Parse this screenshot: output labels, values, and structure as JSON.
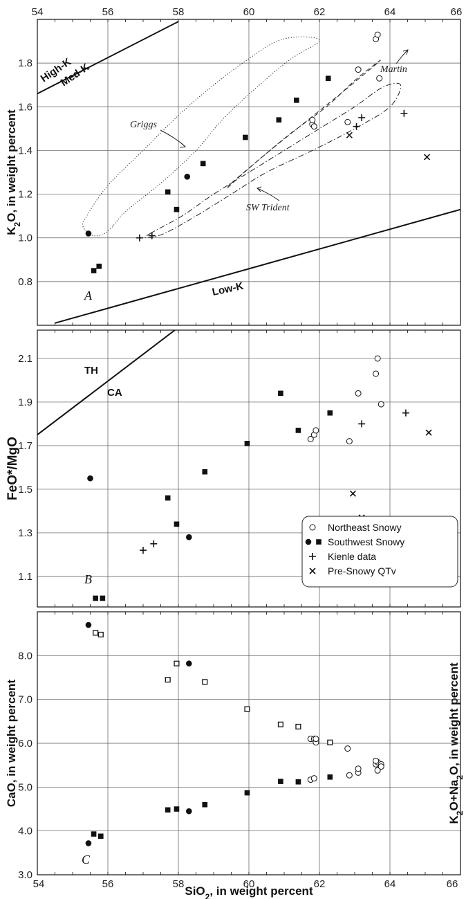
{
  "chart_data": [
    {
      "panel": "A",
      "type": "scatter",
      "ylabel": "K2O, in weight percent",
      "xlim": [
        54,
        66
      ],
      "ylim": [
        0.6,
        2.0
      ],
      "xticks": [
        54,
        56,
        58,
        60,
        62,
        64,
        66
      ],
      "yticks": [
        0.8,
        1.0,
        1.2,
        1.4,
        1.6,
        1.8
      ],
      "ytick_labels": [
        "0.8",
        "1.0",
        "1.2",
        "1.4",
        "1.6",
        "1.8"
      ],
      "boundaries": [
        {
          "name": "High-K / Med-K",
          "x": [
            54,
            58
          ],
          "y": [
            1.66,
            1.99
          ]
        },
        {
          "name": "Low-K",
          "x": [
            54.5,
            66
          ],
          "y": [
            0.61,
            1.13
          ]
        }
      ],
      "boundary_labels": [
        "High-K",
        "Med-K",
        "Low-K"
      ],
      "fields": [
        {
          "name": "Griggs",
          "style": "dotted",
          "points": [
            [
              55.3,
              1.05
            ],
            [
              55.4,
              1.1
            ],
            [
              56.0,
              1.24
            ],
            [
              57.0,
              1.4
            ],
            [
              58.0,
              1.56
            ],
            [
              59.0,
              1.7
            ],
            [
              60.0,
              1.82
            ],
            [
              60.8,
              1.9
            ],
            [
              61.5,
              1.92
            ],
            [
              62.0,
              1.9
            ],
            [
              61.2,
              1.82
            ],
            [
              60.3,
              1.7
            ],
            [
              59.3,
              1.55
            ],
            [
              58.5,
              1.4
            ],
            [
              57.5,
              1.25
            ],
            [
              56.5,
              1.12
            ],
            [
              56.0,
              1.03
            ],
            [
              55.6,
              1.01
            ]
          ]
        },
        {
          "name": "Martin",
          "style": "dashed",
          "points": [
            [
              59.5,
              1.25
            ],
            [
              60.3,
              1.36
            ],
            [
              61.2,
              1.48
            ],
            [
              62.2,
              1.6
            ],
            [
              63.0,
              1.72
            ],
            [
              63.7,
              1.81
            ],
            [
              63.5,
              1.78
            ],
            [
              62.6,
              1.66
            ],
            [
              61.6,
              1.53
            ],
            [
              60.6,
              1.4
            ],
            [
              59.8,
              1.29
            ],
            [
              59.4,
              1.23
            ]
          ]
        },
        {
          "name": "SW Trident",
          "style": "dash-dot",
          "points": [
            [
              57.2,
              1.02
            ],
            [
              58.1,
              1.1
            ],
            [
              59.0,
              1.2
            ],
            [
              60.0,
              1.3
            ],
            [
              61.0,
              1.4
            ],
            [
              62.0,
              1.5
            ],
            [
              63.0,
              1.6
            ],
            [
              63.8,
              1.69
            ],
            [
              64.3,
              1.7
            ],
            [
              64.0,
              1.6
            ],
            [
              63.0,
              1.5
            ],
            [
              61.8,
              1.4
            ],
            [
              60.5,
              1.3
            ],
            [
              59.5,
              1.2
            ],
            [
              58.5,
              1.1
            ],
            [
              57.6,
              1.02
            ],
            [
              57.1,
              1.0
            ]
          ]
        }
      ],
      "field_labels": [
        "Griggs",
        "Martin",
        "SW Trident"
      ],
      "series": [
        {
          "name": "Northeast Snowy",
          "marker": "open-circle",
          "x": [
            61.8,
            61.8,
            61.85,
            62.8,
            63.1,
            63.6,
            63.65,
            63.7
          ],
          "y": [
            1.52,
            1.54,
            1.51,
            1.53,
            1.77,
            1.91,
            1.93,
            1.73
          ]
        },
        {
          "name": "Southwest Snowy",
          "marker": "filled-square",
          "x": [
            55.6,
            55.75,
            57.7,
            57.95,
            58.7,
            59.9,
            60.85,
            61.35,
            62.25
          ],
          "y": [
            0.85,
            0.87,
            1.21,
            1.13,
            1.34,
            1.46,
            1.54,
            1.63,
            1.73
          ]
        },
        {
          "name": "Southwest Snowy",
          "marker": "filled-circle",
          "x": [
            55.45,
            58.25
          ],
          "y": [
            1.02,
            1.28
          ]
        },
        {
          "name": "Kienle data",
          "marker": "plus",
          "x": [
            56.9,
            57.25,
            63.05,
            63.2,
            64.4
          ],
          "y": [
            1.0,
            1.01,
            1.51,
            1.55,
            1.57
          ]
        },
        {
          "name": "Pre-Snowy QTv",
          "marker": "x",
          "x": [
            62.85,
            65.05
          ],
          "y": [
            1.47,
            1.37
          ]
        }
      ]
    },
    {
      "panel": "B",
      "type": "scatter",
      "ylabel": "FeO*/MgO",
      "xlim": [
        54,
        66
      ],
      "ylim": [
        0.96,
        2.23
      ],
      "yticks": [
        1.1,
        1.3,
        1.5,
        1.7,
        1.9,
        2.1
      ],
      "ytick_labels": [
        "1.1",
        "1.3",
        "1.5",
        "1.7",
        "1.9",
        "2.1"
      ],
      "boundaries": [
        {
          "name": "TH / CA",
          "x": [
            54,
            57.9
          ],
          "y": [
            1.75,
            2.23
          ]
        }
      ],
      "boundary_labels": [
        "TH",
        "CA"
      ],
      "series": [
        {
          "name": "Northeast Snowy",
          "marker": "open-circle",
          "x": [
            61.75,
            61.85,
            61.9,
            62.85,
            63.1,
            63.6,
            63.65,
            63.75
          ],
          "y": [
            1.73,
            1.75,
            1.77,
            1.72,
            1.94,
            2.03,
            2.1,
            1.89
          ]
        },
        {
          "name": "Southwest Snowy",
          "marker": "filled-square",
          "x": [
            55.65,
            55.85,
            57.7,
            57.95,
            58.75,
            59.95,
            60.9,
            61.4,
            62.3
          ],
          "y": [
            1.0,
            1.0,
            1.46,
            1.34,
            1.58,
            1.71,
            1.94,
            1.77,
            1.85
          ]
        },
        {
          "name": "Southwest Snowy",
          "marker": "filled-circle",
          "x": [
            55.5,
            58.3
          ],
          "y": [
            1.55,
            1.28
          ]
        },
        {
          "name": "Kienle data",
          "marker": "plus",
          "x": [
            57.0,
            57.3,
            63.2,
            64.45
          ],
          "y": [
            1.22,
            1.25,
            1.8,
            1.85
          ]
        },
        {
          "name": "Pre-Snowy QTv",
          "marker": "x",
          "x": [
            62.95,
            63.2,
            65.1
          ],
          "y": [
            1.48,
            1.37,
            1.76
          ]
        }
      ],
      "legend": {
        "placement": "lower-right",
        "entries": [
          {
            "label": "Northeast Snowy",
            "markers": [
              "open-circle"
            ]
          },
          {
            "label": "Southwest Snowy",
            "markers": [
              "filled-circle",
              "filled-square"
            ]
          },
          {
            "label": "Kienle data",
            "markers": [
              "plus"
            ]
          },
          {
            "label": "Pre-Snowy QTv",
            "markers": [
              "x"
            ]
          }
        ]
      }
    },
    {
      "panel": "C",
      "type": "scatter",
      "ylabel": "CaO, in weight percent",
      "ylabel2": "K2O+Na2O, in weight percent",
      "xlabel": "SiO2, in weight percent",
      "xlim": [
        54,
        66
      ],
      "ylim": [
        3.0,
        9.0
      ],
      "yticks": [
        3.0,
        4.0,
        5.0,
        6.0,
        7.0,
        8.0
      ],
      "ytick_labels": [
        "3.0",
        "4.0",
        "5.0",
        "6.0",
        "7.0",
        "8.0"
      ],
      "series": [
        {
          "name": "CaO (Southwest Snowy)",
          "marker": "small-open-square",
          "x": [
            55.65,
            55.8,
            57.7,
            57.95,
            58.75,
            59.95,
            60.9,
            61.4,
            62.3
          ],
          "y": [
            8.52,
            8.48,
            7.45,
            7.82,
            7.4,
            6.78,
            6.43,
            6.38,
            6.02
          ]
        },
        {
          "name": "CaO (Southwest Snowy)",
          "marker": "filled-circle",
          "x": [
            55.45,
            58.3
          ],
          "y": [
            8.7,
            7.82
          ]
        },
        {
          "name": "CaO (Northeast Snowy)",
          "marker": "open-circle",
          "x": [
            61.75,
            61.85,
            61.9,
            61.9,
            62.8
          ],
          "y": [
            6.1,
            6.1,
            6.02,
            6.1,
            5.88
          ]
        },
        {
          "name": "K2O+Na2O (Southwest Snowy)",
          "marker": "filled-square",
          "x": [
            55.6,
            55.8,
            57.7,
            57.95,
            58.75,
            59.95,
            60.9,
            61.4,
            62.3
          ],
          "y": [
            3.93,
            3.88,
            4.48,
            4.5,
            4.6,
            4.87,
            5.13,
            5.12,
            5.23
          ]
        },
        {
          "name": "K2O+Na2O (Southwest Snowy)",
          "marker": "filled-circle",
          "x": [
            55.45,
            58.3
          ],
          "y": [
            3.72,
            4.45
          ]
        },
        {
          "name": "K2O+Na2O (Northeast Snowy)",
          "marker": "open-circle",
          "x": [
            61.75,
            61.85,
            62.85,
            63.1,
            63.1,
            63.6,
            63.65,
            63.6,
            63.75,
            63.65,
            63.75
          ],
          "y": [
            5.17,
            5.2,
            5.27,
            5.33,
            5.42,
            5.52,
            5.57,
            5.6,
            5.52,
            5.38,
            5.47
          ]
        }
      ]
    }
  ]
}
